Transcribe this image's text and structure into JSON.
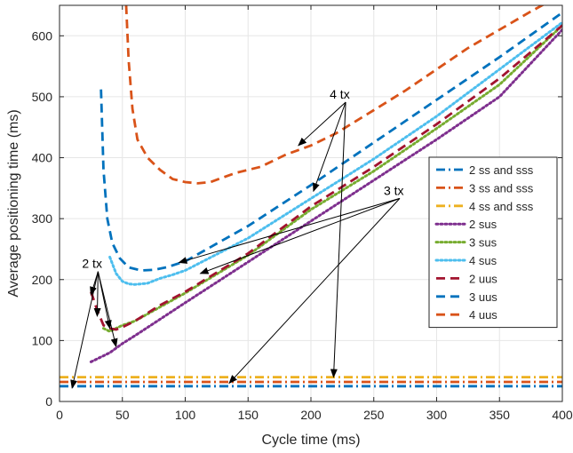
{
  "chart_data": {
    "type": "line",
    "title": "",
    "xlabel": "Cycle time (ms)",
    "ylabel": "Average positioning time (ms)",
    "xlim": [
      0,
      400
    ],
    "ylim": [
      0,
      650
    ],
    "xticks": [
      0,
      50,
      100,
      150,
      200,
      250,
      300,
      350,
      400
    ],
    "yticks": [
      0,
      100,
      200,
      300,
      400,
      500,
      600
    ],
    "grid": true,
    "legend_position": "right",
    "series": [
      {
        "name": "2 ss and sss",
        "color": "#0072BD",
        "style": "dashdot",
        "x": [
          0,
          400
        ],
        "y": [
          25,
          25
        ]
      },
      {
        "name": "3 ss and sss",
        "color": "#D95319",
        "style": "dashdot",
        "x": [
          0,
          400
        ],
        "y": [
          32,
          32
        ]
      },
      {
        "name": "4 ss and sss",
        "color": "#EDB120",
        "style": "dashdot",
        "x": [
          0,
          400
        ],
        "y": [
          40,
          40
        ]
      },
      {
        "name": "2 sus",
        "color": "#7E2F8E",
        "style": "dotted",
        "x": [
          25,
          30,
          40,
          50,
          60,
          80,
          100,
          150,
          200,
          250,
          300,
          350,
          400
        ],
        "y": [
          65,
          70,
          80,
          95,
          108,
          135,
          162,
          229,
          296,
          363,
          430,
          500,
          610
        ]
      },
      {
        "name": "3 sus",
        "color": "#77AC30",
        "style": "dotted",
        "x": [
          35,
          40,
          50,
          60,
          80,
          100,
          150,
          200,
          250,
          300,
          350,
          400
        ],
        "y": [
          120,
          115,
          125,
          132,
          155,
          178,
          240,
          315,
          378,
          448,
          520,
          617
        ]
      },
      {
        "name": "4 sus",
        "color": "#4DBEEE",
        "style": "dotted",
        "x": [
          40,
          45,
          50,
          55,
          60,
          70,
          80,
          90,
          100,
          150,
          200,
          250,
          300,
          350,
          400
        ],
        "y": [
          237,
          210,
          197,
          193,
          192,
          194,
          202,
          208,
          215,
          268,
          333,
          398,
          468,
          545,
          622
        ]
      },
      {
        "name": "2 uus",
        "color": "#A2142F",
        "style": "dashed",
        "x": [
          25,
          30,
          35,
          40,
          45,
          50,
          60,
          80,
          100,
          150,
          200,
          250,
          300,
          350,
          400
        ],
        "y": [
          180,
          150,
          125,
          120,
          118,
          122,
          132,
          158,
          180,
          243,
          320,
          385,
          455,
          530,
          617
        ]
      },
      {
        "name": "3 uus",
        "color": "#0072BD",
        "style": "dashed",
        "x": [
          33,
          35,
          38,
          42,
          48,
          55,
          65,
          75,
          85,
          100,
          150,
          200,
          250,
          300,
          350,
          400
        ],
        "y": [
          512,
          380,
          300,
          260,
          235,
          220,
          215,
          216,
          220,
          230,
          288,
          355,
          425,
          495,
          565,
          638
        ]
      },
      {
        "name": "4 uus",
        "color": "#D95319",
        "style": "dashed",
        "x": [
          53,
          55,
          58,
          62,
          70,
          80,
          90,
          100,
          110,
          120,
          140,
          160,
          180,
          200,
          220,
          250,
          275,
          300,
          325,
          350,
          375,
          400
        ],
        "y": [
          650,
          560,
          480,
          430,
          400,
          380,
          365,
          360,
          358,
          360,
          375,
          385,
          405,
          420,
          440,
          478,
          510,
          545,
          580,
          610,
          640,
          668
        ]
      }
    ],
    "annotations": [
      {
        "text": "2 tx",
        "x": 25,
        "y": 219,
        "targets": [
          [
            10,
            22
          ],
          [
            25,
            175
          ],
          [
            30,
            140
          ],
          [
            40,
            120
          ],
          [
            45,
            90
          ]
        ]
      },
      {
        "text": "3 tx",
        "x": 265,
        "y": 339,
        "targets": [
          [
            95,
            228
          ],
          [
            112,
            210
          ],
          [
            135,
            30
          ]
        ]
      },
      {
        "text": "4 tx",
        "x": 222,
        "y": 497,
        "targets": [
          [
            190,
            420
          ],
          [
            202,
            345
          ],
          [
            218,
            40
          ]
        ]
      }
    ]
  }
}
